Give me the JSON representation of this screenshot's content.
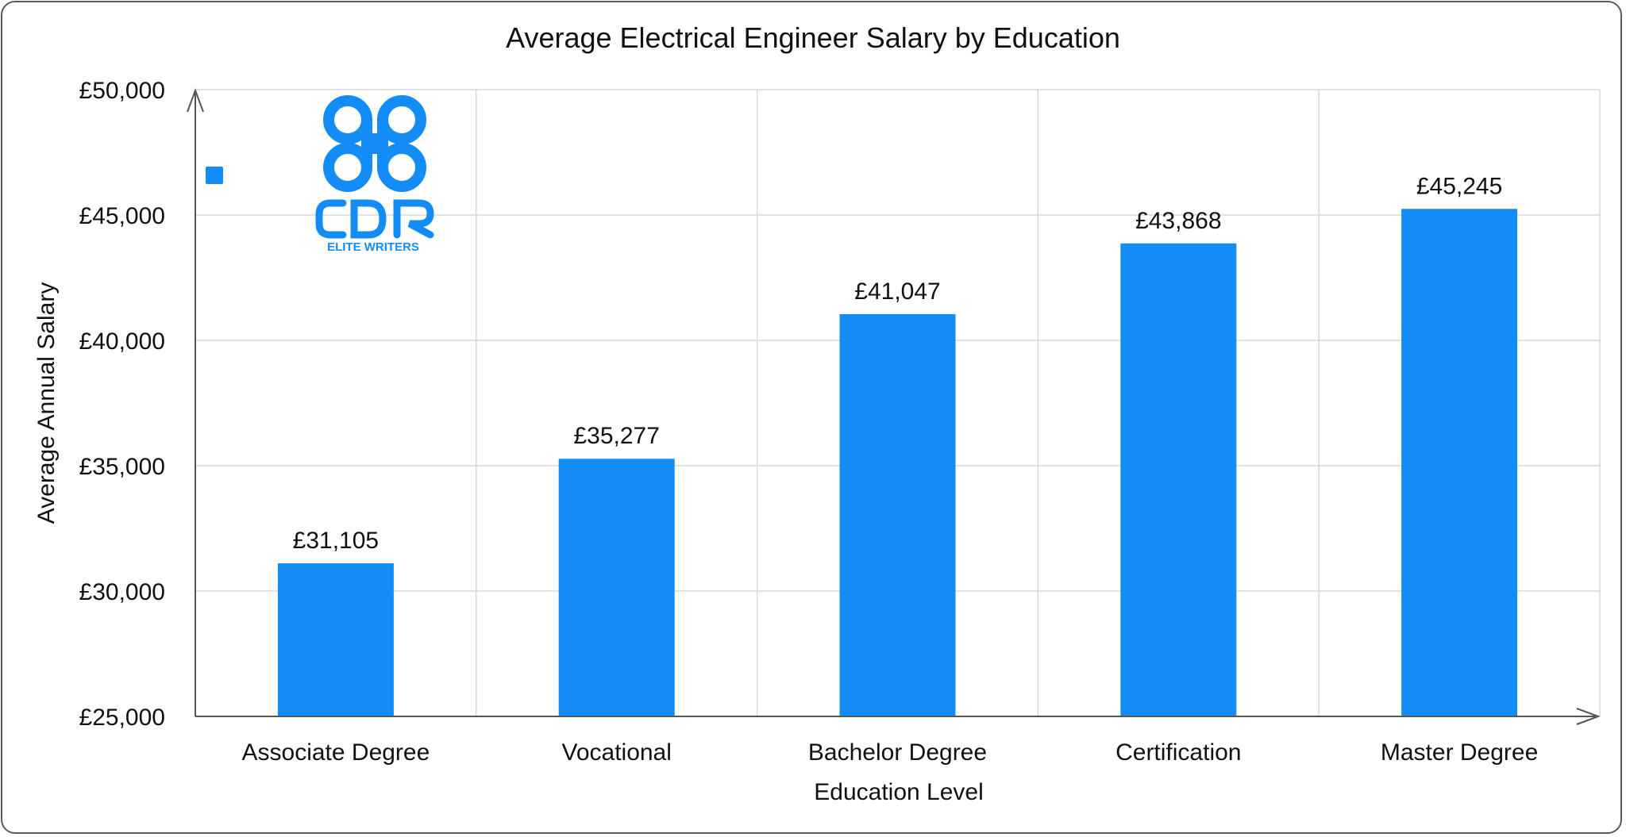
{
  "chart_data": {
    "type": "bar",
    "title": "Average Electrical Engineer Salary by Education",
    "xlabel": "Education Level",
    "ylabel": "Average Annual Salary",
    "categories": [
      "Associate Degree",
      "Vocational",
      "Bachelor Degree",
      "Certification",
      "Master Degree"
    ],
    "values": [
      31105,
      35277,
      41047,
      43868,
      45245
    ],
    "value_labels": [
      "£31,105",
      "£35,277",
      "£41,047",
      "£43,868",
      "£45,245"
    ],
    "ylim": [
      25000,
      50000
    ],
    "yticks": [
      25000,
      30000,
      35000,
      40000,
      45000,
      50000
    ],
    "ytick_labels": [
      "£25,000",
      "£30,000",
      "£35,000",
      "£40,000",
      "£45,000",
      "£50,000"
    ],
    "grid": true,
    "legend": "top-left",
    "bar_color": "#148cf5"
  },
  "logo": {
    "letters": "CDR",
    "tagline": "ELITE WRITERS",
    "color": "#148cf5"
  }
}
